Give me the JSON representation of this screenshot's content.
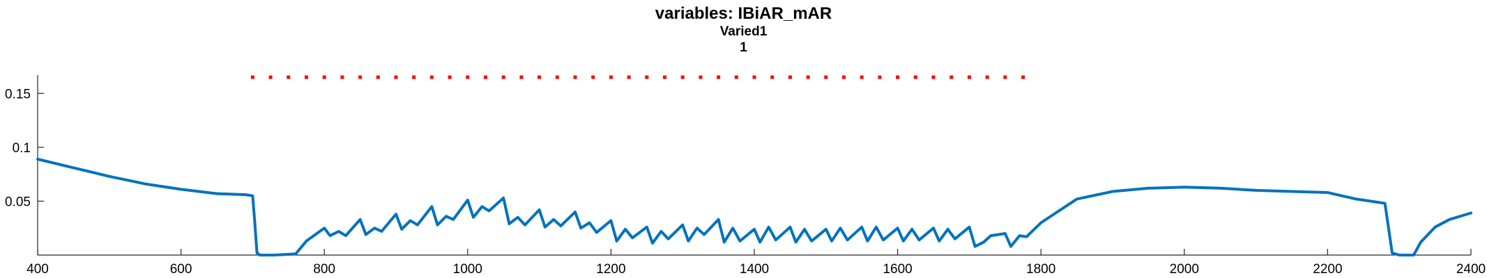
{
  "title": {
    "line1": "variables: IBiAR_mAR",
    "line2": "Varied1",
    "line3": "1"
  },
  "chart_data": {
    "type": "line",
    "title": "variables: IBiAR_mAR",
    "subtitle_lines": [
      "Varied1",
      "1"
    ],
    "xlabel": "",
    "ylabel": "",
    "xlim": [
      400,
      2400
    ],
    "ylim": [
      0,
      0.167
    ],
    "xticks": [
      400,
      600,
      800,
      1000,
      1200,
      1400,
      1600,
      1800,
      2000,
      2200,
      2400
    ],
    "xtick_labels": [
      "400",
      "600",
      "800",
      "1000",
      "1200",
      "1400",
      "1600",
      "1800",
      "2000",
      "2200",
      "2400"
    ],
    "yticks": [
      0.05,
      0.1,
      0.15
    ],
    "ytick_labels": [
      "0.05",
      "0.1",
      "0.15"
    ],
    "grid": false,
    "line_color": "#0072BD",
    "marker_color": "#FF0000",
    "stimulus_markers": {
      "y": 0.165,
      "x_start": 700,
      "x_end": 1780,
      "step": 25
    },
    "series": [
      {
        "x": [
          400,
          450,
          500,
          550,
          600,
          650,
          690,
          700,
          703,
          706,
          710,
          730,
          760,
          775,
          800,
          808,
          820,
          830,
          850,
          858,
          870,
          880,
          900,
          908,
          920,
          930,
          950,
          958,
          970,
          980,
          1000,
          1008,
          1020,
          1030,
          1050,
          1058,
          1070,
          1080,
          1100,
          1108,
          1120,
          1130,
          1150,
          1158,
          1170,
          1180,
          1200,
          1208,
          1220,
          1230,
          1250,
          1258,
          1270,
          1280,
          1300,
          1308,
          1320,
          1330,
          1350,
          1358,
          1370,
          1380,
          1400,
          1408,
          1420,
          1430,
          1450,
          1458,
          1470,
          1480,
          1500,
          1508,
          1520,
          1530,
          1550,
          1558,
          1570,
          1580,
          1600,
          1608,
          1620,
          1630,
          1650,
          1658,
          1670,
          1680,
          1700,
          1708,
          1720,
          1730,
          1750,
          1758,
          1770,
          1780,
          1800,
          1850,
          1900,
          1950,
          2000,
          2050,
          2100,
          2150,
          2200,
          2240,
          2270,
          2280,
          2285,
          2290,
          2300,
          2320,
          2330,
          2350,
          2370,
          2400
        ],
        "y": [
          0.089,
          0.081,
          0.073,
          0.066,
          0.061,
          0.057,
          0.056,
          0.055,
          0.03,
          0.002,
          0.0,
          0.0,
          0.001,
          0.013,
          0.025,
          0.018,
          0.022,
          0.018,
          0.033,
          0.019,
          0.025,
          0.022,
          0.038,
          0.024,
          0.032,
          0.028,
          0.045,
          0.028,
          0.036,
          0.033,
          0.051,
          0.035,
          0.045,
          0.041,
          0.053,
          0.029,
          0.035,
          0.028,
          0.042,
          0.026,
          0.033,
          0.027,
          0.04,
          0.025,
          0.03,
          0.021,
          0.032,
          0.013,
          0.024,
          0.016,
          0.026,
          0.011,
          0.022,
          0.015,
          0.028,
          0.013,
          0.025,
          0.019,
          0.033,
          0.012,
          0.025,
          0.013,
          0.024,
          0.012,
          0.026,
          0.014,
          0.026,
          0.012,
          0.024,
          0.013,
          0.024,
          0.013,
          0.025,
          0.014,
          0.026,
          0.013,
          0.026,
          0.014,
          0.025,
          0.013,
          0.024,
          0.014,
          0.025,
          0.013,
          0.024,
          0.015,
          0.026,
          0.008,
          0.012,
          0.018,
          0.02,
          0.008,
          0.018,
          0.017,
          0.03,
          0.052,
          0.059,
          0.062,
          0.063,
          0.062,
          0.06,
          0.059,
          0.058,
          0.052,
          0.049,
          0.048,
          0.025,
          0.002,
          0.0,
          0.0,
          0.012,
          0.026,
          0.033,
          0.039
        ]
      }
    ]
  }
}
